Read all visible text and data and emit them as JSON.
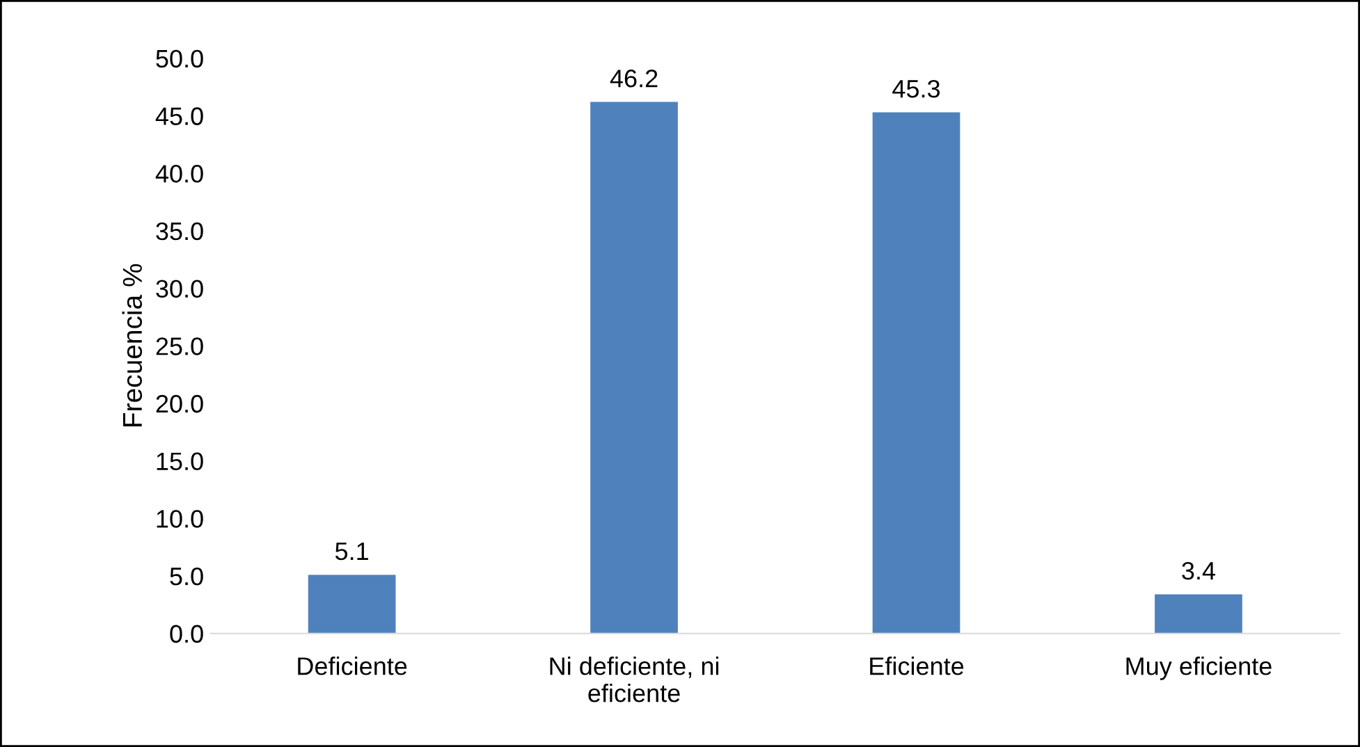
{
  "chart_data": {
    "type": "bar",
    "ylabel": "Frecuencia %",
    "categories": [
      "Deficiente",
      "Ni deficiente, ni\neficiente",
      "Eficiente",
      "Muy eficiente"
    ],
    "values": [
      5.1,
      46.2,
      45.3,
      3.4
    ],
    "color": "#4f81bd",
    "ylim": [
      0,
      50
    ],
    "yticks": [
      {
        "value": 0,
        "label": "0.0"
      },
      {
        "value": 5,
        "label": "5.0"
      },
      {
        "value": 10,
        "label": "10.0"
      },
      {
        "value": 15,
        "label": "15.0"
      },
      {
        "value": 20,
        "label": "20.0"
      },
      {
        "value": 25,
        "label": "25.0"
      },
      {
        "value": 30,
        "label": "30.0"
      },
      {
        "value": 35,
        "label": "35.0"
      },
      {
        "value": 40,
        "label": "40.0"
      },
      {
        "value": 45,
        "label": "45.0"
      },
      {
        "value": 50,
        "label": "50.0"
      }
    ],
    "data_labels": true,
    "grid": false,
    "legend": false
  }
}
